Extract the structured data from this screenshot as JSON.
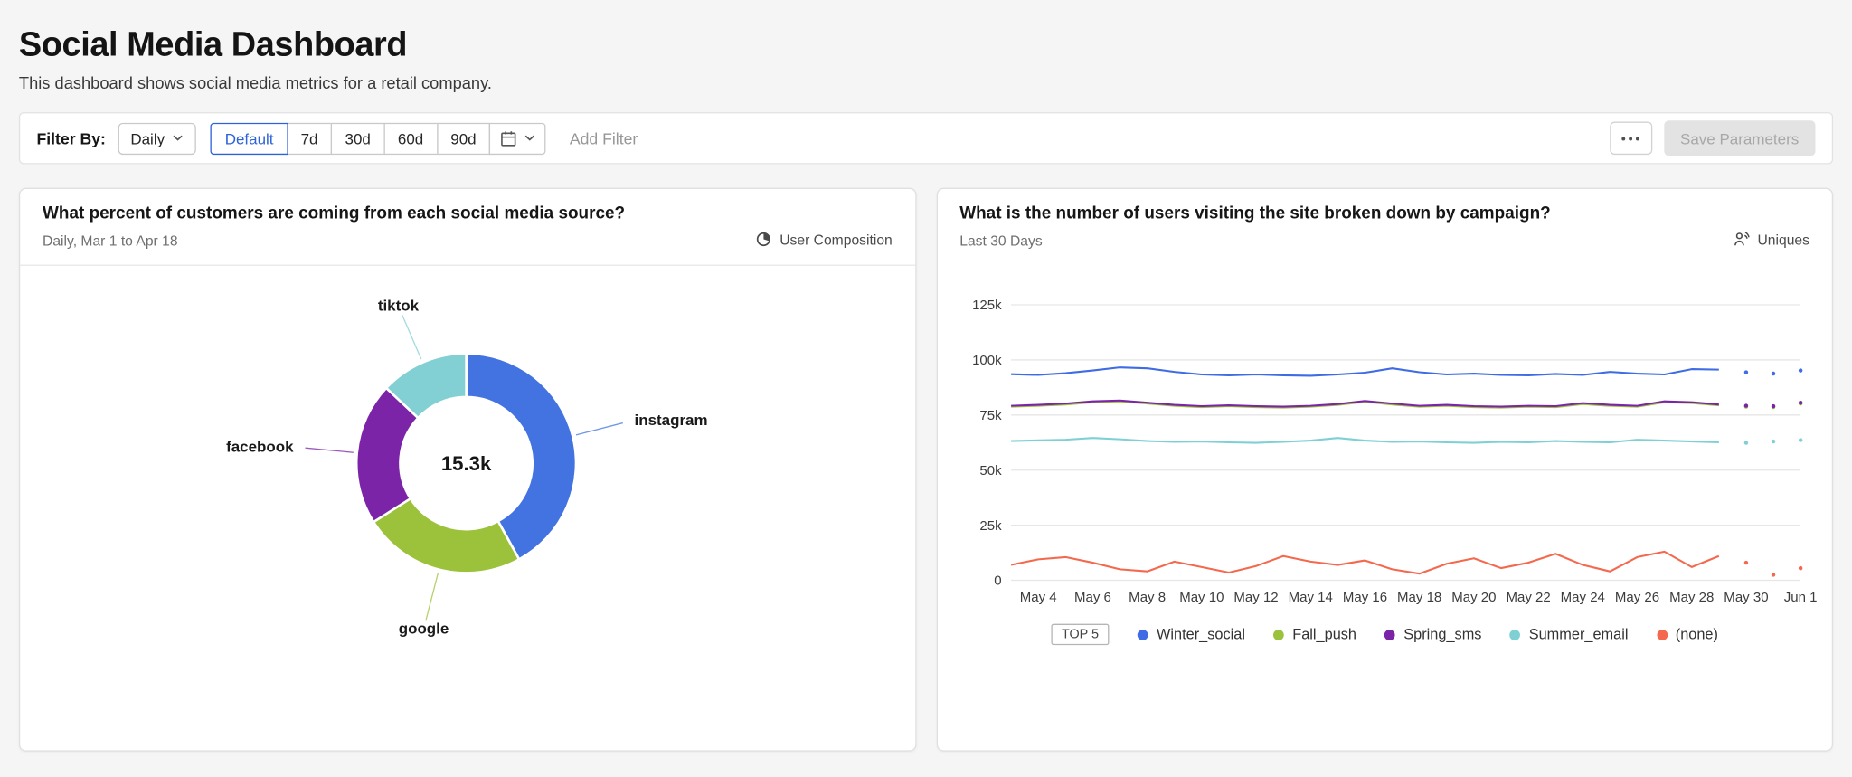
{
  "page": {
    "title": "Social Media Dashboard",
    "subtitle": "This dashboard shows social media metrics for a retail company."
  },
  "filter_bar": {
    "label": "Filter By:",
    "period_dropdown": {
      "value": "Daily"
    },
    "presets": [
      "Default",
      "7d",
      "30d",
      "60d",
      "90d"
    ],
    "active_preset": "Default",
    "add_filter_label": "Add Filter",
    "save_button_label": "Save Parameters"
  },
  "chart_data": [
    {
      "type": "pie",
      "card_title": "What percent of customers are coming from each social media source?",
      "card_subtitle": "Daily, Mar 1 to Apr 18",
      "badge": "User Composition",
      "center_total": "15.3k",
      "slices": [
        {
          "label": "instagram",
          "percent": 42,
          "color": "#4273e0"
        },
        {
          "label": "google",
          "percent": 24,
          "color": "#9cc23c"
        },
        {
          "label": "facebook",
          "percent": 21,
          "color": "#7b24a8"
        },
        {
          "label": "tiktok",
          "percent": 13,
          "color": "#83d0d4"
        }
      ]
    },
    {
      "type": "line",
      "card_title": "What is the number of users visiting the site broken down by campaign?",
      "card_subtitle": "Last 30 Days",
      "badge": "Uniques",
      "unit": "k users",
      "ylim": [
        0,
        125000
      ],
      "legend_prefix": "TOP 5",
      "dotted_tail_points": 3,
      "yticks": [
        {
          "label": "125k",
          "value": 125
        },
        {
          "label": "100k",
          "value": 100
        },
        {
          "label": "75k",
          "value": 75
        },
        {
          "label": "50k",
          "value": 50
        },
        {
          "label": "25k",
          "value": 25
        },
        {
          "label": "0",
          "value": 0
        }
      ],
      "xticks": [
        {
          "index": 1,
          "label": "May 4"
        },
        {
          "index": 3,
          "label": "May 6"
        },
        {
          "index": 5,
          "label": "May 8"
        },
        {
          "index": 7,
          "label": "May 10"
        },
        {
          "index": 9,
          "label": "May 12"
        },
        {
          "index": 11,
          "label": "May 14"
        },
        {
          "index": 13,
          "label": "May 16"
        },
        {
          "index": 15,
          "label": "May 18"
        },
        {
          "index": 17,
          "label": "May 20"
        },
        {
          "index": 19,
          "label": "May 22"
        },
        {
          "index": 21,
          "label": "May 24"
        },
        {
          "index": 23,
          "label": "May 26"
        },
        {
          "index": 25,
          "label": "May 28"
        },
        {
          "index": 27,
          "label": "May 30"
        },
        {
          "index": 29,
          "label": "Jun 1"
        }
      ],
      "series": [
        {
          "name": "Winter_social",
          "color": "#3f6ce4",
          "values": [
            93.5,
            93.2,
            94.0,
            95.2,
            96.6,
            96.2,
            94.6,
            93.4,
            93.0,
            93.4,
            93.0,
            92.8,
            93.4,
            94.2,
            96.2,
            94.4,
            93.4,
            93.8,
            93.2,
            93.0,
            93.6,
            93.2,
            94.6,
            93.8,
            93.4,
            95.8,
            95.6,
            94.4,
            93.8,
            95.2
          ]
        },
        {
          "name": "Fall_push",
          "color": "#9bc23d",
          "values": [
            78.8,
            79.2,
            79.8,
            80.8,
            81.2,
            80.2,
            79.2,
            78.6,
            79.0,
            78.6,
            78.4,
            78.8,
            79.6,
            81.0,
            79.8,
            78.8,
            79.2,
            78.6,
            78.4,
            78.8,
            78.6,
            80.0,
            79.2,
            78.8,
            80.8,
            80.4,
            79.4,
            78.8,
            78.6,
            80.2
          ]
        },
        {
          "name": "Spring_sms",
          "color": "#7b24a8",
          "values": [
            79.2,
            79.6,
            80.2,
            81.2,
            81.6,
            80.6,
            79.6,
            79.0,
            79.4,
            79.0,
            78.8,
            79.2,
            80.0,
            81.4,
            80.2,
            79.2,
            79.6,
            79.0,
            78.8,
            79.2,
            79.0,
            80.4,
            79.6,
            79.2,
            81.2,
            80.8,
            79.8,
            79.2,
            79.0,
            80.6
          ]
        },
        {
          "name": "Summer_email",
          "color": "#7fd0d4",
          "values": [
            63.2,
            63.5,
            63.8,
            64.6,
            64.0,
            63.2,
            62.8,
            63.0,
            62.6,
            62.4,
            62.8,
            63.4,
            64.6,
            63.4,
            62.8,
            63.0,
            62.6,
            62.4,
            62.8,
            62.6,
            63.2,
            62.8,
            62.6,
            63.8,
            63.4,
            63.0,
            62.6,
            62.4,
            63.0,
            63.6
          ]
        },
        {
          "name": "(none)",
          "color": "#f4694e",
          "values": [
            7.0,
            9.5,
            10.5,
            8.0,
            5.0,
            4.0,
            8.5,
            6.0,
            3.5,
            6.5,
            11.0,
            8.5,
            7.0,
            9.0,
            5.0,
            3.0,
            7.5,
            10.0,
            5.5,
            8.0,
            12.0,
            7.0,
            4.0,
            10.5,
            13.0,
            6.0,
            11.0,
            8.0,
            2.5,
            5.5
          ]
        }
      ]
    }
  ]
}
